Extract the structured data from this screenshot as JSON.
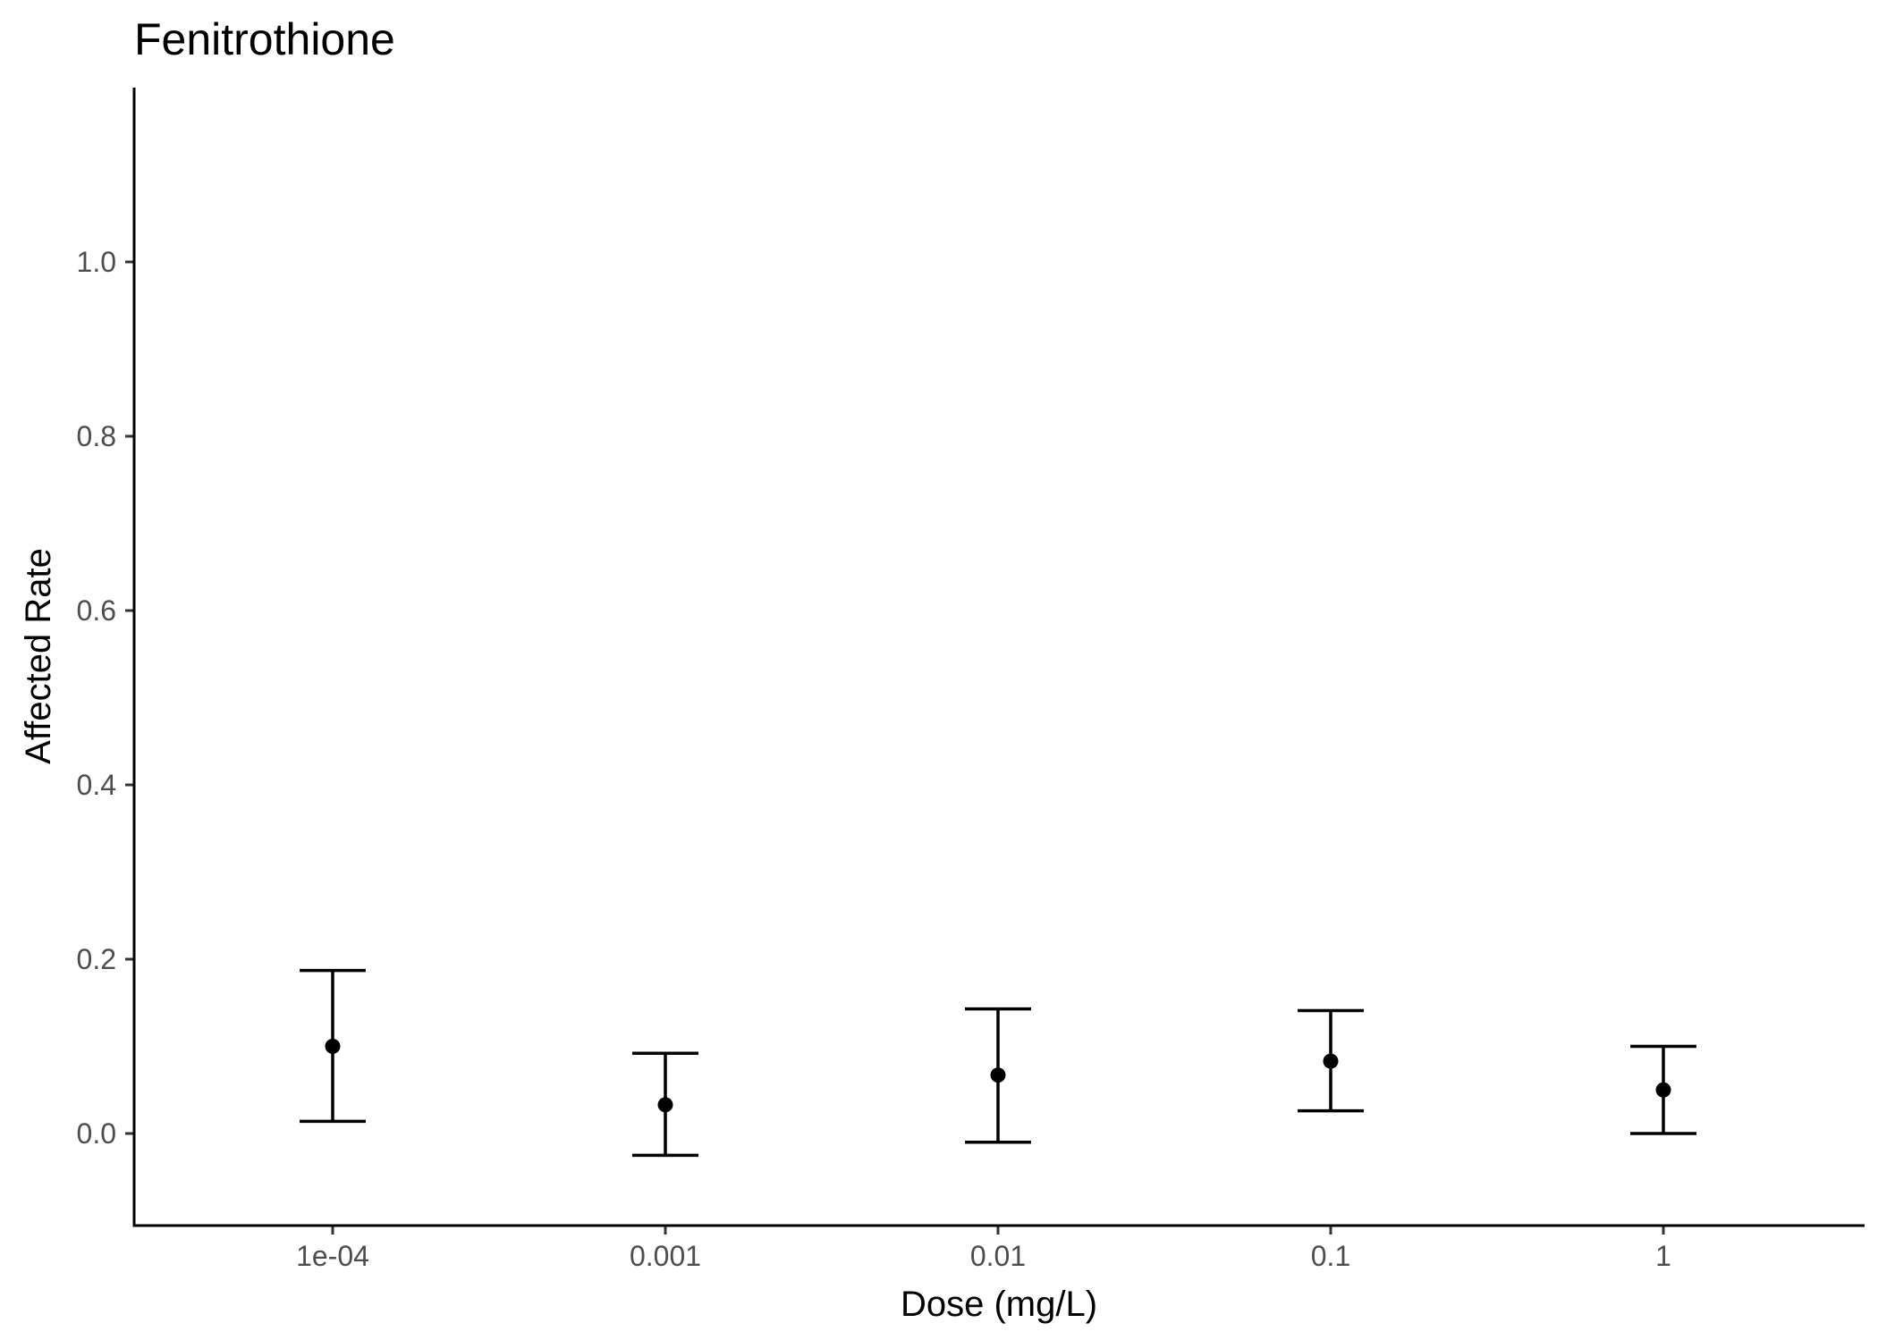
{
  "chart_data": {
    "type": "scatter",
    "title": "Fenitrothione",
    "xlabel": "Dose (mg/L)",
    "ylabel": "Affected Rate",
    "categories": [
      "1e-04",
      "0.001",
      "0.01",
      "0.1",
      "1"
    ],
    "series": [
      {
        "values": [
          0.1,
          0.033,
          0.067,
          0.083,
          0.05
        ],
        "lower": [
          0.014,
          -0.025,
          -0.01,
          0.026,
          0.0
        ],
        "upper": [
          0.187,
          0.092,
          0.143,
          0.141,
          0.1
        ]
      }
    ],
    "ylim": [
      -0.1,
      1.19
    ],
    "yticks": [
      0.0,
      0.2,
      0.4,
      0.6,
      0.8,
      1.0
    ],
    "ytick_labels": [
      "0.0",
      "0.2",
      "0.4",
      "0.6",
      "0.8",
      "1.0"
    ],
    "grid": false,
    "legend": "none",
    "colors": {
      "marks": "#000000",
      "tick_labels": "#4d4d4d"
    }
  }
}
